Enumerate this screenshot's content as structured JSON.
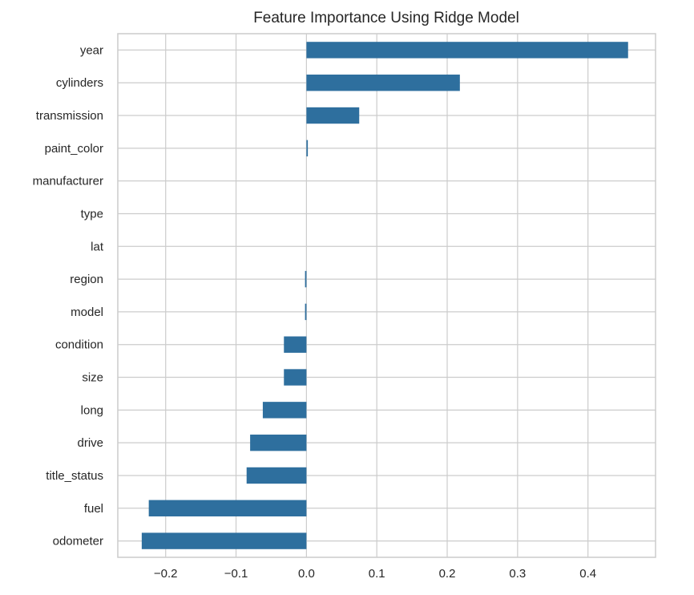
{
  "chart_data": {
    "type": "bar",
    "orientation": "horizontal",
    "title": "Feature Importance Using Ridge Model",
    "xlabel": "",
    "ylabel": "",
    "categories": [
      "year",
      "cylinders",
      "transmission",
      "paint_color",
      "manufacturer",
      "type",
      "lat",
      "region",
      "model",
      "condition",
      "size",
      "long",
      "drive",
      "title_status",
      "fuel",
      "odometer"
    ],
    "values": [
      0.457,
      0.218,
      0.075,
      0.002,
      0.0,
      0.0,
      0.0,
      -0.002,
      -0.002,
      -0.032,
      -0.032,
      -0.062,
      -0.08,
      -0.085,
      -0.224,
      -0.234
    ],
    "xlim": [
      -0.268,
      0.496
    ],
    "xticks": [
      -0.2,
      -0.1,
      0.0,
      0.1,
      0.2,
      0.3,
      0.4
    ],
    "xtick_labels": [
      "−0.2",
      "−0.1",
      "0.0",
      "0.1",
      "0.2",
      "0.3",
      "0.4"
    ],
    "grid": true,
    "bar_color": "#2e6f9e",
    "grid_color": "#cccccc",
    "frame_color": "#cccccc"
  }
}
